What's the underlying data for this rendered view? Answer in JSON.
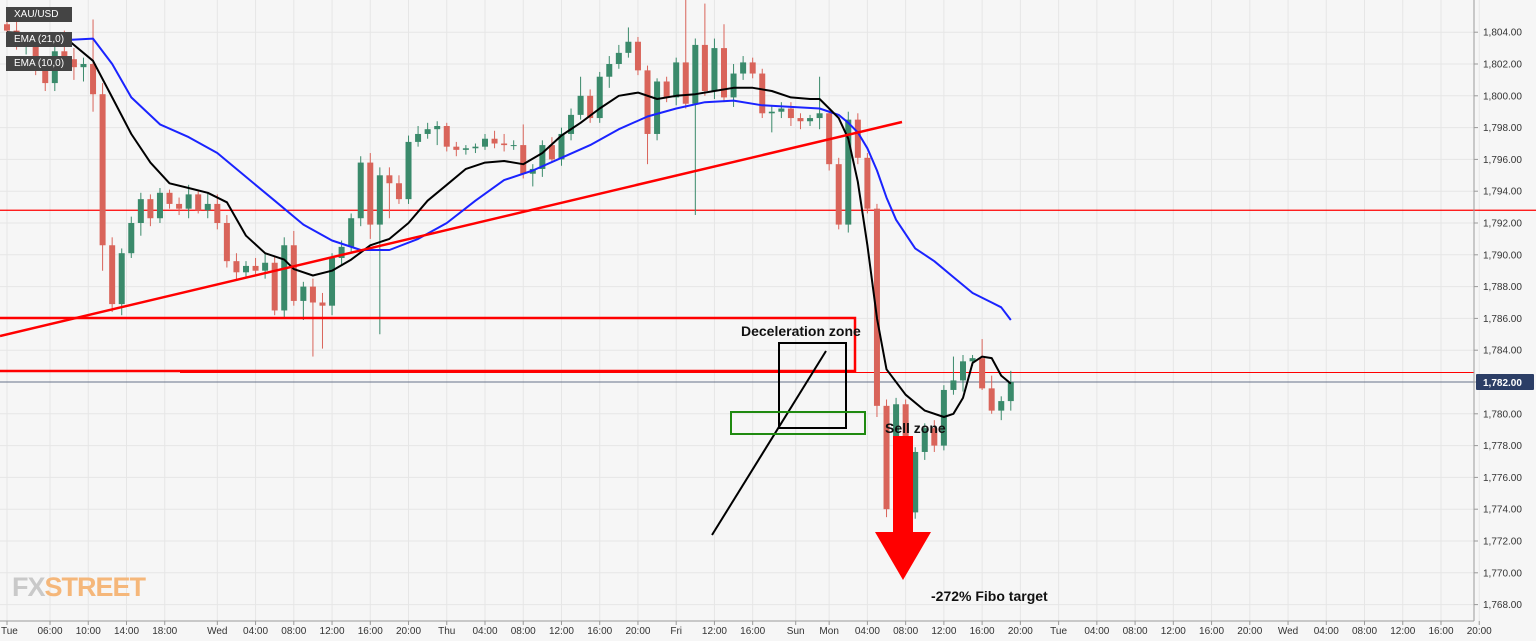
{
  "legend": {
    "symbol": "XAU/USD",
    "ema_slow": "EMA (21,0)",
    "ema_fast": "EMA (10,0)"
  },
  "logo": {
    "fx": "FX",
    "street": "STREET"
  },
  "colors": {
    "up": "#3a8a6b",
    "down": "#d9645a",
    "ema_slow": "#1a23ff",
    "ema_fast": "#000000",
    "drawing_red": "#ff0000",
    "sell_zone_green": "#1f8a10",
    "price_badge": "#2c3e66"
  },
  "chart_data": {
    "type": "candlestick",
    "symbol": "XAU/USD",
    "y_axis": {
      "ylim": [
        1767,
        1806.2
      ],
      "ticks": [
        1768,
        1770,
        1772,
        1774,
        1776,
        1778,
        1780,
        1782,
        1784,
        1786,
        1788,
        1790,
        1792,
        1794,
        1796,
        1798,
        1800,
        1802,
        1804
      ],
      "tick_labels": [
        "1,768.00",
        "1,770.00",
        "1,772.00",
        "1,774.00",
        "1,776.00",
        "1,778.00",
        "1,780.00",
        "1,782.00",
        "1,784.00",
        "1,786.00",
        "1,788.00",
        "1,790.00",
        "1,792.00",
        "1,794.00",
        "1,796.00",
        "1,798.00",
        "1,800.00",
        "1,802.00",
        "1,804.00"
      ],
      "current_price": 1782.0,
      "current_price_label": "1,782.00"
    },
    "x_axis": {
      "labels": [
        "Tue",
        "06:00",
        "10:00",
        "14:00",
        "18:00",
        "Wed",
        "04:00",
        "08:00",
        "12:00",
        "16:00",
        "20:00",
        "Thu",
        "04:00",
        "08:00",
        "12:00",
        "16:00",
        "20:00",
        "Fri",
        "12:00",
        "16:00",
        "Sun",
        "Mon",
        "04:00",
        "08:00",
        "12:00",
        "16:00",
        "20:00",
        "Tue",
        "04:00",
        "08:00",
        "12:00",
        "16:00",
        "20:00",
        "Wed",
        "04:00",
        "08:00",
        "12:00",
        "16:00",
        "20:00"
      ],
      "label_bar_index": [
        0,
        4.5,
        8.5,
        12.5,
        16.5,
        22,
        26,
        30,
        34,
        38,
        42,
        46,
        50,
        54,
        58,
        62,
        66,
        70,
        74,
        78,
        82.5,
        86,
        90,
        94,
        98,
        102,
        106,
        110,
        114,
        118,
        122,
        126,
        130,
        134,
        138,
        142,
        146,
        150,
        154
      ]
    },
    "candles": [
      {
        "o": 1804.5,
        "h": 1805.5,
        "l": 1803.8,
        "c": 1804.1
      },
      {
        "o": 1804.1,
        "h": 1804.8,
        "l": 1802.9,
        "c": 1803.2
      },
      {
        "o": 1803.2,
        "h": 1804.0,
        "l": 1802.6,
        "c": 1803.5
      },
      {
        "o": 1803.5,
        "h": 1803.9,
        "l": 1801.3,
        "c": 1801.6
      },
      {
        "o": 1801.6,
        "h": 1801.9,
        "l": 1800.3,
        "c": 1800.8
      },
      {
        "o": 1800.8,
        "h": 1803.2,
        "l": 1800.3,
        "c": 1802.8
      },
      {
        "o": 1802.8,
        "h": 1804.1,
        "l": 1801.9,
        "c": 1802.3
      },
      {
        "o": 1802.3,
        "h": 1803.0,
        "l": 1801.0,
        "c": 1801.8
      },
      {
        "o": 1801.8,
        "h": 1802.4,
        "l": 1800.9,
        "c": 1802.0
      },
      {
        "o": 1802.0,
        "h": 1804.8,
        "l": 1799.0,
        "c": 1800.1
      },
      {
        "o": 1800.1,
        "h": 1800.8,
        "l": 1789.0,
        "c": 1790.6
      },
      {
        "o": 1790.6,
        "h": 1791.1,
        "l": 1786.4,
        "c": 1786.9
      },
      {
        "o": 1786.9,
        "h": 1790.4,
        "l": 1786.2,
        "c": 1790.1
      },
      {
        "o": 1790.1,
        "h": 1792.4,
        "l": 1789.8,
        "c": 1792.0
      },
      {
        "o": 1792.0,
        "h": 1793.9,
        "l": 1791.2,
        "c": 1793.5
      },
      {
        "o": 1793.5,
        "h": 1793.8,
        "l": 1791.8,
        "c": 1792.3
      },
      {
        "o": 1792.3,
        "h": 1794.2,
        "l": 1792.0,
        "c": 1793.9
      },
      {
        "o": 1793.9,
        "h": 1794.1,
        "l": 1792.9,
        "c": 1793.2
      },
      {
        "o": 1793.2,
        "h": 1793.6,
        "l": 1792.5,
        "c": 1792.9
      },
      {
        "o": 1792.9,
        "h": 1794.4,
        "l": 1792.3,
        "c": 1793.8
      },
      {
        "o": 1793.8,
        "h": 1794.0,
        "l": 1792.6,
        "c": 1792.8
      },
      {
        "o": 1792.8,
        "h": 1793.9,
        "l": 1792.3,
        "c": 1793.2
      },
      {
        "o": 1793.2,
        "h": 1793.8,
        "l": 1791.6,
        "c": 1792.0
      },
      {
        "o": 1792.0,
        "h": 1792.5,
        "l": 1789.2,
        "c": 1789.6
      },
      {
        "o": 1789.6,
        "h": 1790.1,
        "l": 1788.4,
        "c": 1788.9
      },
      {
        "o": 1788.9,
        "h": 1789.6,
        "l": 1788.6,
        "c": 1789.3
      },
      {
        "o": 1789.3,
        "h": 1789.8,
        "l": 1788.7,
        "c": 1789.0
      },
      {
        "o": 1789.0,
        "h": 1790.1,
        "l": 1788.5,
        "c": 1789.5
      },
      {
        "o": 1789.5,
        "h": 1789.9,
        "l": 1786.2,
        "c": 1786.5
      },
      {
        "o": 1786.5,
        "h": 1791.1,
        "l": 1786.0,
        "c": 1790.6
      },
      {
        "o": 1790.6,
        "h": 1791.5,
        "l": 1786.8,
        "c": 1787.1
      },
      {
        "o": 1787.1,
        "h": 1788.3,
        "l": 1785.9,
        "c": 1788.0
      },
      {
        "o": 1788.0,
        "h": 1788.5,
        "l": 1783.6,
        "c": 1787.0
      },
      {
        "o": 1787.0,
        "h": 1787.6,
        "l": 1784.1,
        "c": 1786.8
      },
      {
        "o": 1786.8,
        "h": 1790.1,
        "l": 1786.2,
        "c": 1789.8
      },
      {
        "o": 1789.8,
        "h": 1790.9,
        "l": 1789.3,
        "c": 1790.5
      },
      {
        "o": 1790.5,
        "h": 1792.6,
        "l": 1790.2,
        "c": 1792.3
      },
      {
        "o": 1792.3,
        "h": 1796.2,
        "l": 1791.8,
        "c": 1795.8
      },
      {
        "o": 1795.8,
        "h": 1796.4,
        "l": 1791.0,
        "c": 1791.9
      },
      {
        "o": 1791.9,
        "h": 1795.5,
        "l": 1785.0,
        "c": 1795.0
      },
      {
        "o": 1795.0,
        "h": 1795.5,
        "l": 1792.3,
        "c": 1794.5
      },
      {
        "o": 1794.5,
        "h": 1795.0,
        "l": 1793.2,
        "c": 1793.5
      },
      {
        "o": 1793.5,
        "h": 1797.5,
        "l": 1793.2,
        "c": 1797.1
      },
      {
        "o": 1797.1,
        "h": 1798.1,
        "l": 1796.8,
        "c": 1797.6
      },
      {
        "o": 1797.6,
        "h": 1798.3,
        "l": 1797.3,
        "c": 1797.9
      },
      {
        "o": 1797.9,
        "h": 1798.4,
        "l": 1796.9,
        "c": 1798.1
      },
      {
        "o": 1798.1,
        "h": 1798.3,
        "l": 1796.5,
        "c": 1796.8
      },
      {
        "o": 1796.8,
        "h": 1797.1,
        "l": 1796.2,
        "c": 1796.6
      },
      {
        "o": 1796.6,
        "h": 1796.9,
        "l": 1796.3,
        "c": 1796.7
      },
      {
        "o": 1796.7,
        "h": 1797.0,
        "l": 1796.4,
        "c": 1796.8
      },
      {
        "o": 1796.8,
        "h": 1797.6,
        "l": 1796.6,
        "c": 1797.3
      },
      {
        "o": 1797.3,
        "h": 1797.8,
        "l": 1796.7,
        "c": 1797.0
      },
      {
        "o": 1797.0,
        "h": 1797.6,
        "l": 1796.5,
        "c": 1796.9
      },
      {
        "o": 1796.9,
        "h": 1797.2,
        "l": 1796.6,
        "c": 1796.9
      },
      {
        "o": 1796.9,
        "h": 1798.2,
        "l": 1794.8,
        "c": 1795.1
      },
      {
        "o": 1795.1,
        "h": 1795.7,
        "l": 1794.3,
        "c": 1795.4
      },
      {
        "o": 1795.4,
        "h": 1797.2,
        "l": 1794.9,
        "c": 1796.9
      },
      {
        "o": 1796.9,
        "h": 1797.4,
        "l": 1795.8,
        "c": 1796.0
      },
      {
        "o": 1796.0,
        "h": 1798.0,
        "l": 1795.6,
        "c": 1797.6
      },
      {
        "o": 1797.6,
        "h": 1799.2,
        "l": 1797.2,
        "c": 1798.8
      },
      {
        "o": 1798.8,
        "h": 1801.2,
        "l": 1798.5,
        "c": 1800.0
      },
      {
        "o": 1800.0,
        "h": 1800.4,
        "l": 1798.3,
        "c": 1798.6
      },
      {
        "o": 1798.6,
        "h": 1801.5,
        "l": 1798.3,
        "c": 1801.2
      },
      {
        "o": 1801.2,
        "h": 1802.5,
        "l": 1800.5,
        "c": 1802.0
      },
      {
        "o": 1802.0,
        "h": 1803.2,
        "l": 1801.7,
        "c": 1802.7
      },
      {
        "o": 1802.7,
        "h": 1804.3,
        "l": 1802.4,
        "c": 1803.4
      },
      {
        "o": 1803.4,
        "h": 1803.7,
        "l": 1801.3,
        "c": 1801.6
      },
      {
        "o": 1801.6,
        "h": 1801.9,
        "l": 1795.7,
        "c": 1797.6
      },
      {
        "o": 1797.6,
        "h": 1801.1,
        "l": 1797.2,
        "c": 1800.9
      },
      {
        "o": 1800.9,
        "h": 1801.2,
        "l": 1799.6,
        "c": 1799.9
      },
      {
        "o": 1799.9,
        "h": 1802.4,
        "l": 1799.4,
        "c": 1802.1
      },
      {
        "o": 1802.1,
        "h": 1806.2,
        "l": 1799.2,
        "c": 1799.5
      },
      {
        "o": 1799.5,
        "h": 1803.6,
        "l": 1792.5,
        "c": 1803.2
      },
      {
        "o": 1803.2,
        "h": 1805.8,
        "l": 1800.0,
        "c": 1800.3
      },
      {
        "o": 1800.3,
        "h": 1803.6,
        "l": 1799.8,
        "c": 1803.0
      },
      {
        "o": 1803.0,
        "h": 1804.5,
        "l": 1799.6,
        "c": 1799.9
      },
      {
        "o": 1799.9,
        "h": 1802.0,
        "l": 1799.3,
        "c": 1801.4
      },
      {
        "o": 1801.4,
        "h": 1802.5,
        "l": 1801.0,
        "c": 1802.1
      },
      {
        "o": 1802.1,
        "h": 1802.4,
        "l": 1801.1,
        "c": 1801.4
      },
      {
        "o": 1801.4,
        "h": 1801.7,
        "l": 1798.6,
        "c": 1798.9
      },
      {
        "o": 1798.9,
        "h": 1799.4,
        "l": 1797.7,
        "c": 1799.0
      },
      {
        "o": 1799.0,
        "h": 1799.6,
        "l": 1798.6,
        "c": 1799.2
      },
      {
        "o": 1799.2,
        "h": 1799.6,
        "l": 1798.1,
        "c": 1798.6
      },
      {
        "o": 1798.6,
        "h": 1798.9,
        "l": 1797.9,
        "c": 1798.4
      },
      {
        "o": 1798.4,
        "h": 1798.8,
        "l": 1798.1,
        "c": 1798.6
      },
      {
        "o": 1798.6,
        "h": 1801.2,
        "l": 1797.9,
        "c": 1798.9
      },
      {
        "o": 1798.9,
        "h": 1799.2,
        "l": 1795.3,
        "c": 1795.7
      },
      {
        "o": 1795.7,
        "h": 1796.1,
        "l": 1791.6,
        "c": 1791.9
      },
      {
        "o": 1791.9,
        "h": 1799.0,
        "l": 1791.4,
        "c": 1798.5
      },
      {
        "o": 1798.5,
        "h": 1798.9,
        "l": 1795.7,
        "c": 1796.1
      },
      {
        "o": 1796.1,
        "h": 1796.4,
        "l": 1792.6,
        "c": 1792.9
      },
      {
        "o": 1792.9,
        "h": 1793.2,
        "l": 1779.8,
        "c": 1780.5
      },
      {
        "o": 1780.5,
        "h": 1780.9,
        "l": 1773.5,
        "c": 1774.0
      },
      {
        "o": 1774.0,
        "h": 1781.0,
        "l": 1772.2,
        "c": 1780.6
      },
      {
        "o": 1780.6,
        "h": 1780.9,
        "l": 1772.0,
        "c": 1773.8
      },
      {
        "o": 1773.8,
        "h": 1777.9,
        "l": 1773.4,
        "c": 1777.6
      },
      {
        "o": 1777.6,
        "h": 1779.4,
        "l": 1777.1,
        "c": 1779.1
      },
      {
        "o": 1779.1,
        "h": 1779.6,
        "l": 1777.6,
        "c": 1778.0
      },
      {
        "o": 1778.0,
        "h": 1781.8,
        "l": 1777.7,
        "c": 1781.5
      },
      {
        "o": 1781.5,
        "h": 1783.6,
        "l": 1781.2,
        "c": 1782.1
      },
      {
        "o": 1782.1,
        "h": 1783.7,
        "l": 1781.4,
        "c": 1783.3
      },
      {
        "o": 1783.3,
        "h": 1783.7,
        "l": 1783.0,
        "c": 1783.5
      },
      {
        "o": 1783.5,
        "h": 1784.7,
        "l": 1781.5,
        "c": 1781.6
      },
      {
        "o": 1781.6,
        "h": 1782.4,
        "l": 1780.0,
        "c": 1780.2
      },
      {
        "o": 1780.2,
        "h": 1781.1,
        "l": 1779.6,
        "c": 1780.8
      },
      {
        "o": 1780.8,
        "h": 1782.7,
        "l": 1780.2,
        "c": 1782.0
      }
    ],
    "series": [
      {
        "name": "EMA (21,0)",
        "points": [
          [
            0,
            1803.9
          ],
          [
            2,
            1803.8
          ],
          [
            4,
            1803.6
          ],
          [
            6,
            1803.5
          ],
          [
            9,
            1803.6
          ],
          [
            11,
            1802.0
          ],
          [
            13,
            1799.9
          ],
          [
            16,
            1798.2
          ],
          [
            19,
            1797.4
          ],
          [
            22,
            1796.4
          ],
          [
            25,
            1794.9
          ],
          [
            28,
            1793.4
          ],
          [
            31,
            1791.9
          ],
          [
            34,
            1790.9
          ],
          [
            37,
            1790.3
          ],
          [
            40,
            1790.3
          ],
          [
            43,
            1791.0
          ],
          [
            46,
            1792.0
          ],
          [
            49,
            1793.4
          ],
          [
            52,
            1794.7
          ],
          [
            55,
            1795.3
          ],
          [
            58,
            1796.1
          ],
          [
            61,
            1796.9
          ],
          [
            64,
            1797.9
          ],
          [
            67,
            1798.7
          ],
          [
            70,
            1799.2
          ],
          [
            73,
            1799.6
          ],
          [
            76,
            1799.7
          ],
          [
            79,
            1799.4
          ],
          [
            82,
            1799.3
          ],
          [
            85,
            1799.2
          ],
          [
            87,
            1798.8
          ],
          [
            88,
            1798.3
          ],
          [
            89,
            1797.7
          ],
          [
            90,
            1796.7
          ],
          [
            91,
            1795.3
          ],
          [
            92,
            1793.6
          ],
          [
            93,
            1792.2
          ],
          [
            95,
            1790.4
          ],
          [
            97,
            1789.6
          ],
          [
            99,
            1788.6
          ],
          [
            101,
            1787.6
          ],
          [
            103,
            1787.0
          ],
          [
            104,
            1786.7
          ],
          [
            105,
            1785.9
          ]
        ]
      },
      {
        "name": "EMA (10,0)",
        "points": [
          [
            0,
            1804.0
          ],
          [
            3,
            1803.9
          ],
          [
            6,
            1803.7
          ],
          [
            9,
            1802.2
          ],
          [
            11,
            1799.9
          ],
          [
            13,
            1797.6
          ],
          [
            15,
            1795.8
          ],
          [
            17,
            1794.5
          ],
          [
            19,
            1794.2
          ],
          [
            21,
            1793.9
          ],
          [
            23,
            1793.3
          ],
          [
            25,
            1791.2
          ],
          [
            27,
            1790.1
          ],
          [
            29,
            1789.7
          ],
          [
            30,
            1789.1
          ],
          [
            32,
            1788.7
          ],
          [
            34,
            1789.0
          ],
          [
            36,
            1789.7
          ],
          [
            38,
            1790.6
          ],
          [
            40,
            1791.0
          ],
          [
            42,
            1792.0
          ],
          [
            44,
            1793.4
          ],
          [
            46,
            1794.4
          ],
          [
            48,
            1795.4
          ],
          [
            50,
            1795.8
          ],
          [
            52,
            1795.9
          ],
          [
            54,
            1795.7
          ],
          [
            56,
            1796.4
          ],
          [
            58,
            1797.5
          ],
          [
            60,
            1798.3
          ],
          [
            62,
            1799.2
          ],
          [
            64,
            1800.0
          ],
          [
            66,
            1800.2
          ],
          [
            68,
            1799.8
          ],
          [
            70,
            1800.0
          ],
          [
            72,
            1800.1
          ],
          [
            74,
            1800.3
          ],
          [
            76,
            1800.5
          ],
          [
            78,
            1800.5
          ],
          [
            80,
            1800.3
          ],
          [
            82,
            1799.9
          ],
          [
            84,
            1799.8
          ],
          [
            85,
            1799.8
          ],
          [
            86,
            1799.2
          ],
          [
            87,
            1798.6
          ],
          [
            88,
            1797.3
          ],
          [
            89,
            1794.6
          ],
          [
            90,
            1790.6
          ],
          [
            91,
            1786.0
          ],
          [
            92,
            1782.8
          ],
          [
            94,
            1781.2
          ],
          [
            96,
            1780.2
          ],
          [
            98,
            1779.8
          ],
          [
            99,
            1780.0
          ],
          [
            100,
            1781.0
          ],
          [
            101,
            1783.2
          ],
          [
            102,
            1783.6
          ],
          [
            103,
            1783.5
          ],
          [
            104,
            1782.4
          ],
          [
            105,
            1781.9
          ]
        ]
      }
    ],
    "horizontal_lines": [
      1792.8,
      1782.6
    ],
    "annotations": [
      {
        "text": "Deceleration zone"
      },
      {
        "text": "Sell zone"
      },
      {
        "text": "-272% Fibo target"
      }
    ]
  }
}
